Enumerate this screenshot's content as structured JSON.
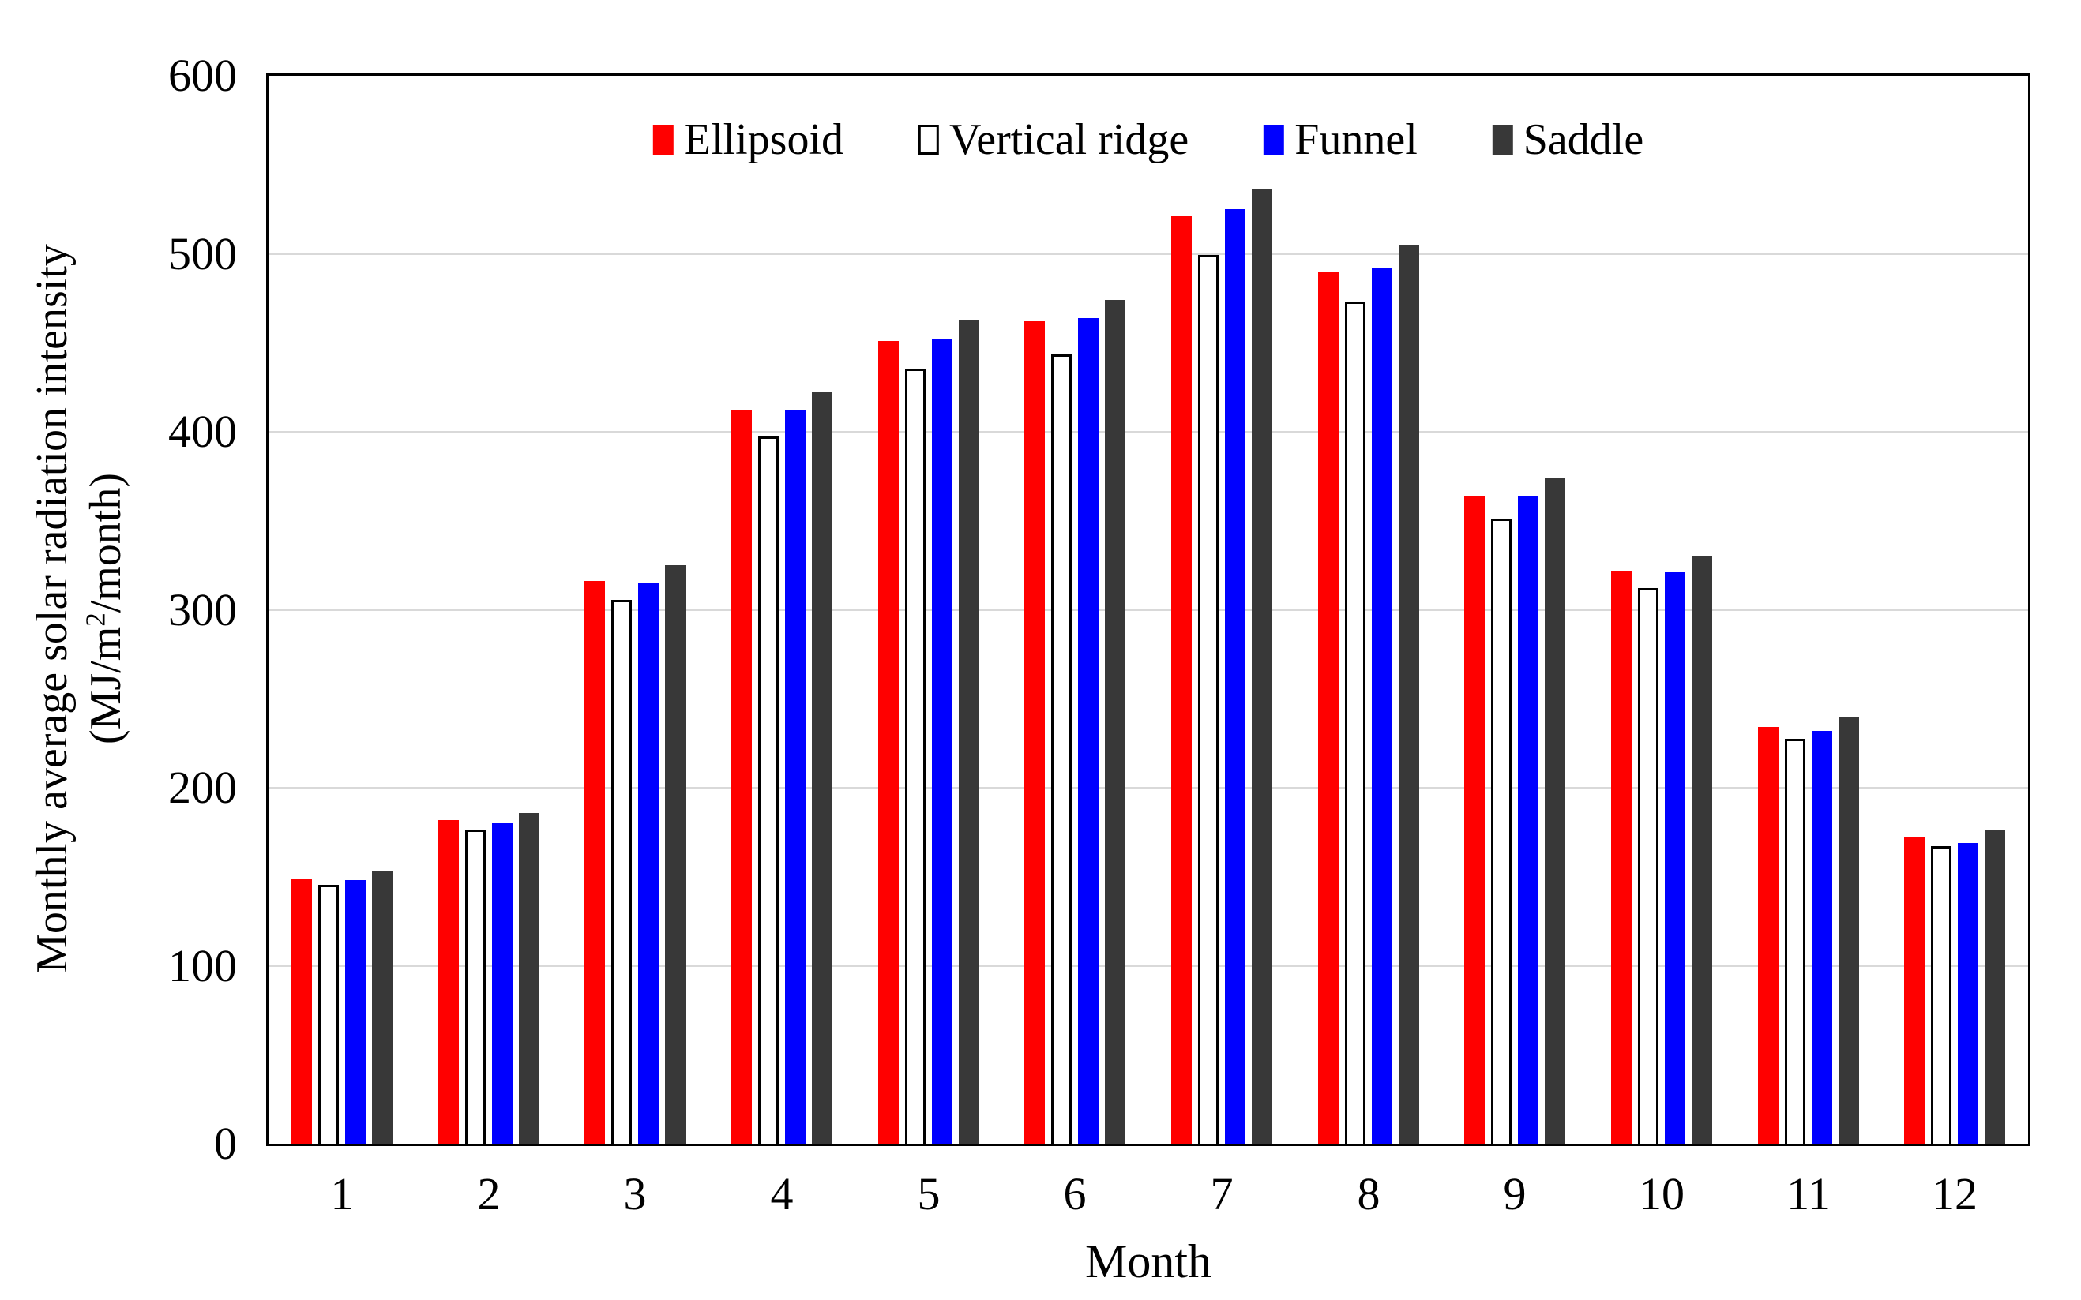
{
  "chart_data": {
    "type": "bar",
    "title": "",
    "xlabel": "Month",
    "ylabel_line1": "Monthly average solar radiation intensity",
    "ylabel_line2_pre": "(MJ/m",
    "ylabel_line2_sup": "2",
    "ylabel_line2_post": "/month)",
    "categories": [
      "1",
      "2",
      "3",
      "4",
      "5",
      "6",
      "7",
      "8",
      "9",
      "10",
      "11",
      "12"
    ],
    "series": [
      {
        "name": "Ellipsoid",
        "color": "#FF0000",
        "outlined": false,
        "values": [
          149,
          182,
          316,
          412,
          451,
          462,
          521,
          490,
          364,
          322,
          234,
          172
        ]
      },
      {
        "name": "Vertical ridge",
        "color": "#FFFFFF",
        "outlined": true,
        "border_color": "#000000",
        "values": [
          144,
          175,
          304,
          396,
          434,
          442,
          498,
          472,
          350,
          311,
          226,
          166
        ]
      },
      {
        "name": "Funnel",
        "color": "#0000FF",
        "outlined": false,
        "values": [
          148,
          180,
          315,
          412,
          452,
          464,
          525,
          492,
          364,
          321,
          232,
          169
        ]
      },
      {
        "name": "Saddle",
        "color": "#383838",
        "outlined": false,
        "values": [
          153,
          186,
          325,
          422,
          463,
          474,
          536,
          505,
          374,
          330,
          240,
          176
        ]
      }
    ],
    "ylim": [
      0,
      600
    ],
    "ytick_interval": 100,
    "yticks": [
      "0",
      "100",
      "200",
      "300",
      "400",
      "500",
      "600"
    ],
    "grid": "horizontal",
    "gridline_color": "#D9D9D9",
    "axis_color": "#000000",
    "legend_position": "top-center"
  }
}
